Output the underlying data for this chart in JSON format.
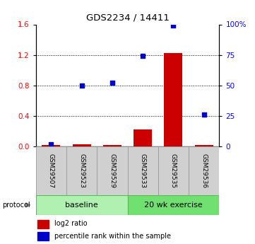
{
  "title": "GDS2234 / 14411",
  "samples": [
    "GSM29507",
    "GSM29523",
    "GSM29529",
    "GSM29533",
    "GSM29535",
    "GSM29536"
  ],
  "log2_ratio": [
    0.02,
    0.03,
    0.02,
    0.22,
    1.22,
    0.02
  ],
  "percentile_rank": [
    2,
    50,
    52,
    74,
    99,
    26
  ],
  "bar_color": "#cc0000",
  "dot_color": "#0000cc",
  "left_ylim": [
    0,
    1.6
  ],
  "right_ylim": [
    0,
    100
  ],
  "left_yticks": [
    0,
    0.4,
    0.8,
    1.2,
    1.6
  ],
  "right_yticks": [
    0,
    25,
    50,
    75,
    100
  ],
  "right_yticklabels": [
    "0",
    "25",
    "50",
    "75",
    "100%"
  ],
  "sample_box_color": "#d0d0d0",
  "sample_box_edge": "#999999",
  "baseline_color": "#b0f0b0",
  "exercise_color": "#70e070",
  "group_edge_color": "#50c050",
  "protocol_arrow_color": "#999999"
}
